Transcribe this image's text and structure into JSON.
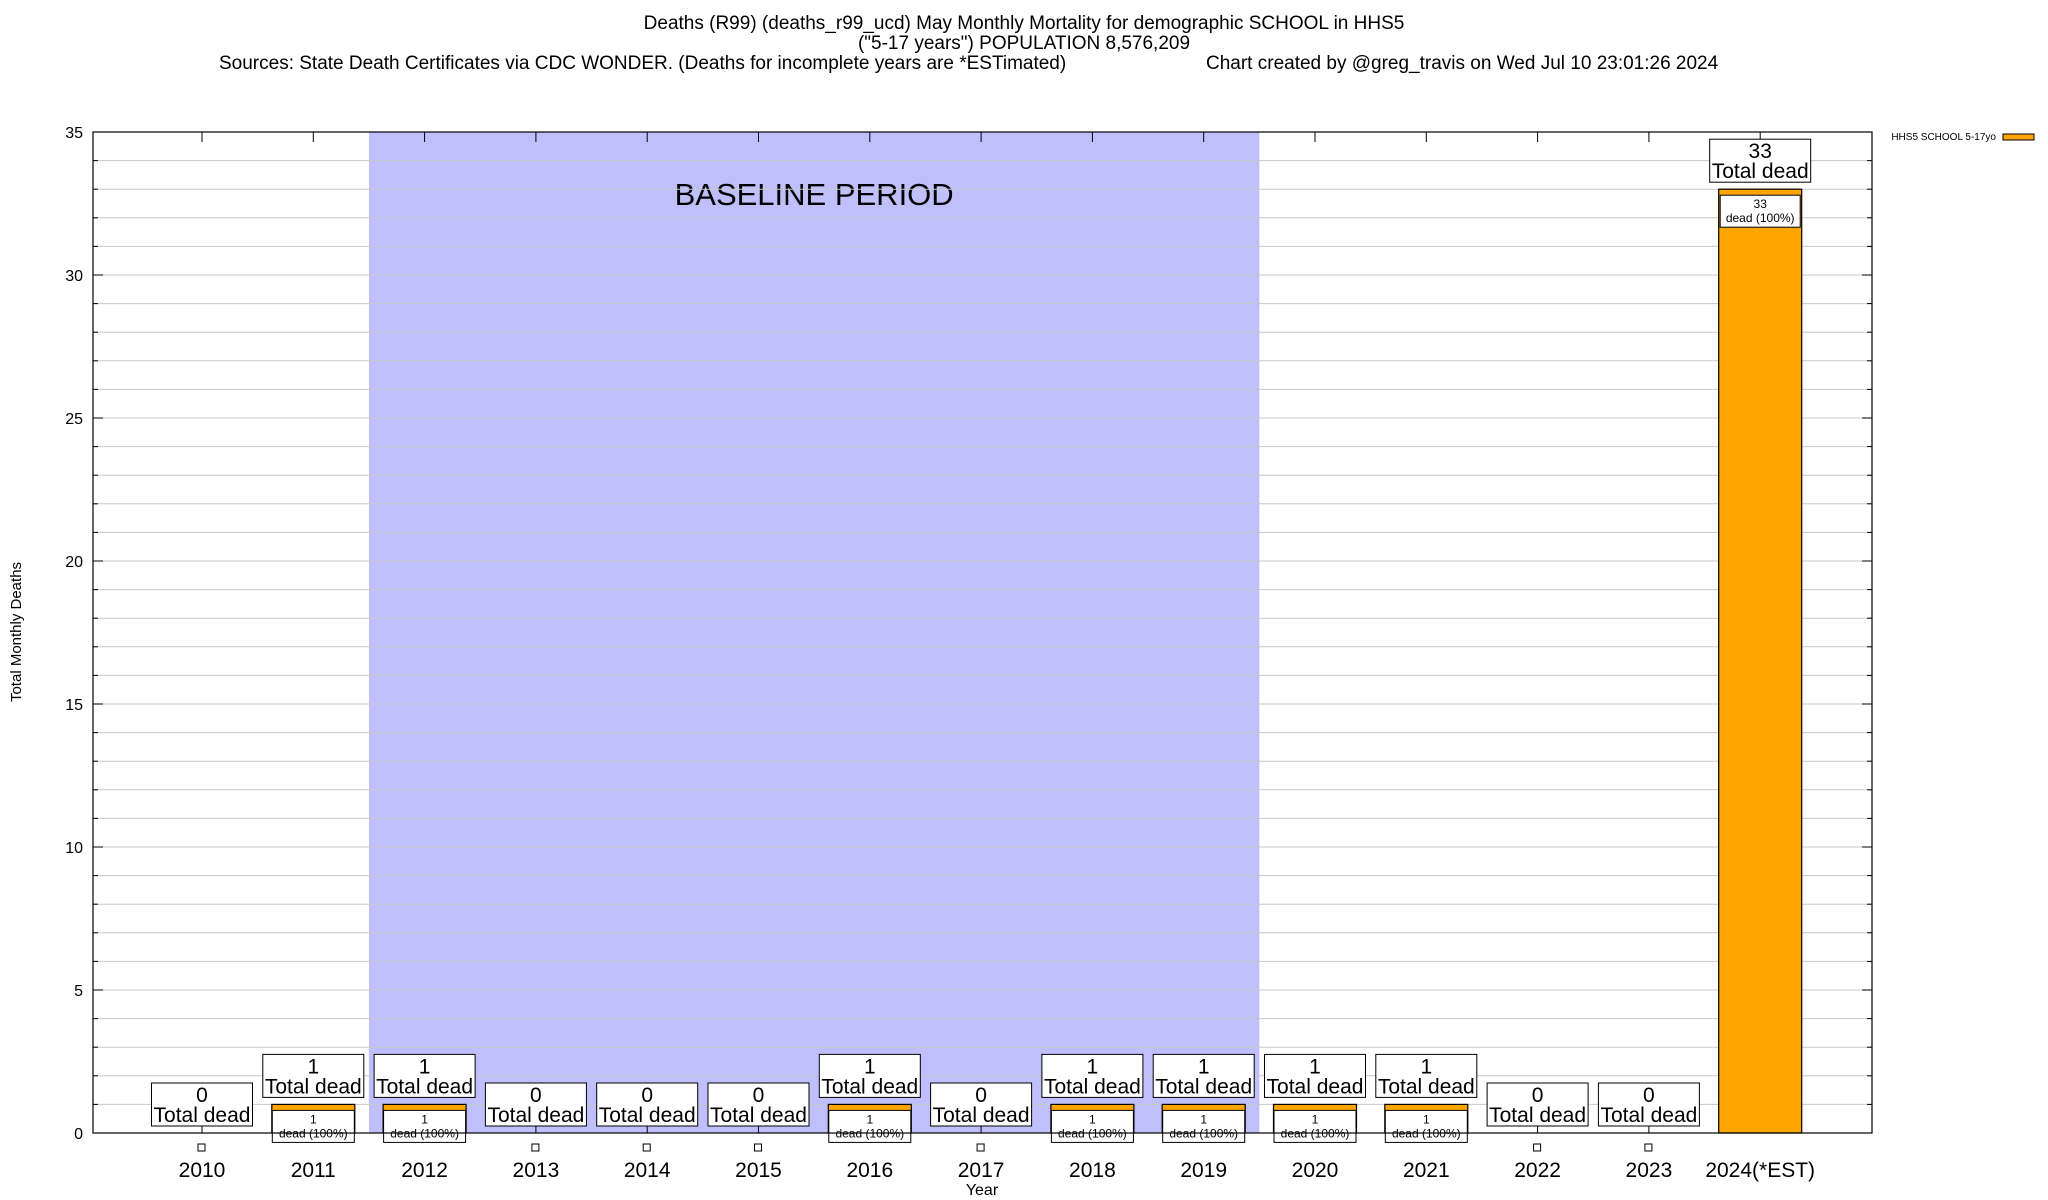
{
  "header": {
    "title_line1": "Deaths (R99) (deaths_r99_ucd) May Monthly Mortality for demographic SCHOOL in HHS5",
    "title_line2": "(\"5-17 years\") POPULATION 8,576,209",
    "sources": "Sources: State Death Certificates via CDC WONDER. (Deaths for incomplete years are *ESTimated)",
    "credit": "Chart created by @greg_travis on Wed Jul 10 23:01:26 2024"
  },
  "chart_data": {
    "type": "bar",
    "categories": [
      "2010",
      "2011",
      "2012",
      "2013",
      "2014",
      "2015",
      "2016",
      "2017",
      "2018",
      "2019",
      "2020",
      "2021",
      "2022",
      "2023",
      "2024(*EST)"
    ],
    "series": [
      {
        "name": "HHS5 SCHOOL 5-17yo",
        "values": [
          0,
          1,
          1,
          0,
          0,
          0,
          1,
          0,
          1,
          1,
          1,
          1,
          0,
          0,
          33
        ]
      }
    ],
    "total_labels": [
      "0",
      "1",
      "1",
      "0",
      "0",
      "0",
      "1",
      "0",
      "1",
      "1",
      "1",
      "1",
      "0",
      "0",
      "33"
    ],
    "total_suffix": "Total dead",
    "segment_labels": [
      "",
      "1\ndead (100%)",
      "1\ndead (100%)",
      "",
      "",
      "",
      "1\ndead (100%)",
      "",
      "1\ndead (100%)",
      "1\ndead (100%)",
      "1\ndead (100%)",
      "1\ndead (100%)",
      "",
      "",
      "33\ndead (100%)"
    ],
    "baseline": {
      "label": "BASELINE PERIOD",
      "from": "2012",
      "to": "2019"
    },
    "xlabel": "Year",
    "ylabel": "Total Monthly Deaths",
    "ylim": [
      0,
      35
    ],
    "yticks": [
      0,
      5,
      10,
      15,
      20,
      25,
      30,
      35
    ],
    "minor_step": 1,
    "grid": true,
    "legend_position": "top-right",
    "colors": {
      "bar": "#FFA500",
      "baseline": "#BFBFFC",
      "grid": "#C8C8C8"
    }
  }
}
